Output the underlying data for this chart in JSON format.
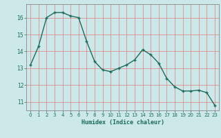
{
  "x": [
    0,
    1,
    2,
    3,
    4,
    5,
    6,
    7,
    8,
    9,
    10,
    11,
    12,
    13,
    14,
    15,
    16,
    17,
    18,
    19,
    20,
    21,
    22,
    23
  ],
  "y": [
    13.2,
    14.3,
    16.0,
    16.3,
    16.3,
    16.1,
    16.0,
    14.6,
    13.4,
    12.9,
    12.8,
    13.0,
    13.2,
    13.5,
    14.1,
    13.8,
    13.3,
    12.4,
    11.9,
    11.65,
    11.65,
    11.7,
    11.55,
    10.8
  ],
  "line_color": "#1a6b5a",
  "marker": "+",
  "bg_color": "#cce8e8",
  "grid_color": "#e08080",
  "xlabel": "Humidex (Indice chaleur)",
  "xlim": [
    -0.5,
    23.5
  ],
  "ylim": [
    10.5,
    16.8
  ],
  "yticks": [
    11,
    12,
    13,
    14,
    15,
    16
  ],
  "xticks": [
    0,
    1,
    2,
    3,
    4,
    5,
    6,
    7,
    8,
    9,
    10,
    11,
    12,
    13,
    14,
    15,
    16,
    17,
    18,
    19,
    20,
    21,
    22,
    23
  ]
}
